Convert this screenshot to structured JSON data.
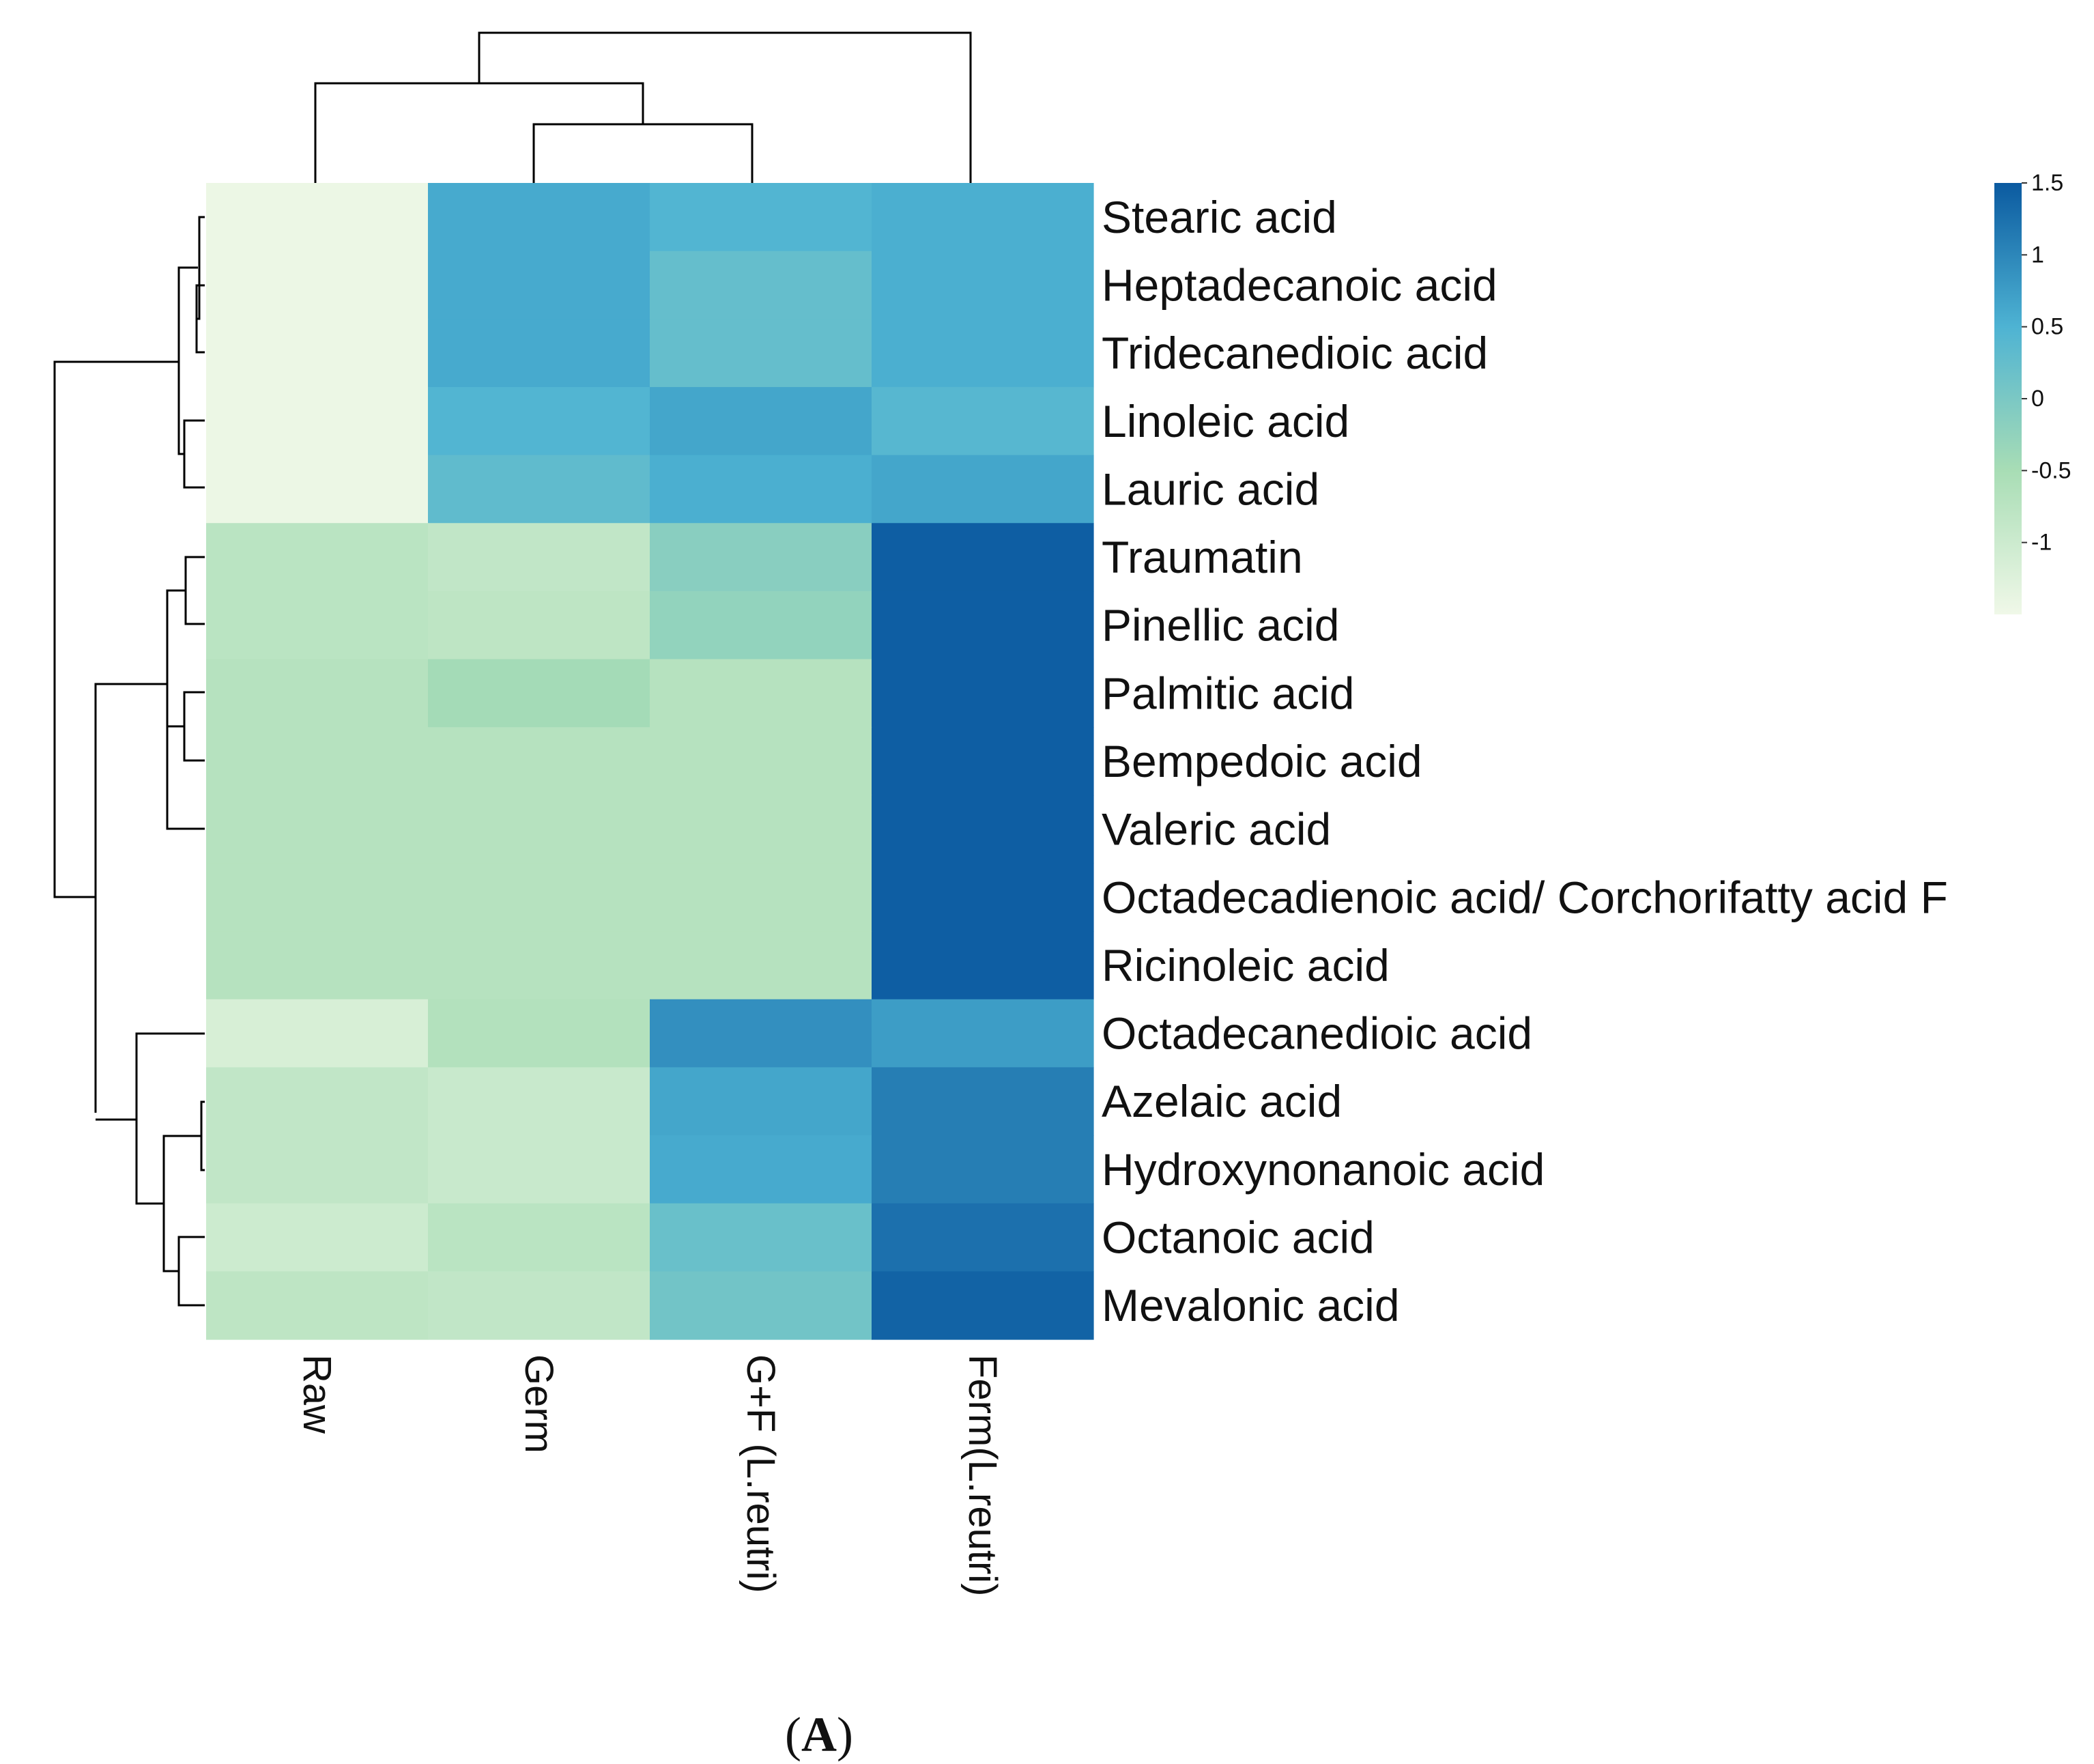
{
  "chart_data": {
    "type": "heatmap",
    "title": "",
    "panel_label": "A",
    "columns": [
      "Raw",
      "Germ",
      "G+F (L.reutri)",
      "Ferm(L.reutri)"
    ],
    "rows": [
      "Stearic acid",
      "Heptadecanoic acid",
      "Tridecanedioic acid",
      "Linoleic acid",
      "Lauric acid",
      "Traumatin",
      "Pinellic acid",
      "Palmitic acid",
      "Bempedoic acid",
      "Valeric acid",
      "Octadecadienoic acid/ Corchorifatty acid F",
      "Ricinoleic acid",
      "Octadecanedioic acid",
      "Azelaic acid",
      "Hydroxynonanoic acid",
      "Octanoic acid",
      "Mevalonic acid"
    ],
    "values": [
      [
        -1.45,
        0.6,
        0.45,
        0.55
      ],
      [
        -1.45,
        0.6,
        0.25,
        0.55
      ],
      [
        -1.45,
        0.6,
        0.25,
        0.55
      ],
      [
        -1.45,
        0.45,
        0.65,
        0.4
      ],
      [
        -1.45,
        0.3,
        0.55,
        0.65
      ],
      [
        -0.75,
        -0.85,
        -0.15,
        1.45
      ],
      [
        -0.75,
        -0.8,
        -0.25,
        1.45
      ],
      [
        -0.7,
        -0.45,
        -0.7,
        1.45
      ],
      [
        -0.7,
        -0.7,
        -0.7,
        1.45
      ],
      [
        -0.7,
        -0.7,
        -0.7,
        1.45
      ],
      [
        -0.7,
        -0.7,
        -0.7,
        1.45
      ],
      [
        -0.7,
        -0.7,
        -0.7,
        1.45
      ],
      [
        -1.15,
        -0.65,
        0.9,
        0.75
      ],
      [
        -0.85,
        -0.95,
        0.65,
        1.1
      ],
      [
        -0.85,
        -0.95,
        0.6,
        1.1
      ],
      [
        -1.0,
        -0.75,
        0.2,
        1.25
      ],
      [
        -0.8,
        -0.85,
        0.1,
        1.4
      ]
    ],
    "color_scale": {
      "min": -1.5,
      "max": 1.5,
      "ticks": [
        1.5,
        1,
        0.5,
        0,
        -0.5,
        -1
      ],
      "tick_labels": [
        "1.5",
        "1",
        "0.5",
        "0",
        "-0.5",
        "-1"
      ],
      "colors": [
        "#f0f8e8",
        "#a8ddb5",
        "#4eb3d3",
        "#0b5aa0"
      ]
    },
    "legend_position": "top-right",
    "row_dendrogram": "clustered",
    "column_dendrogram": "clustered"
  }
}
